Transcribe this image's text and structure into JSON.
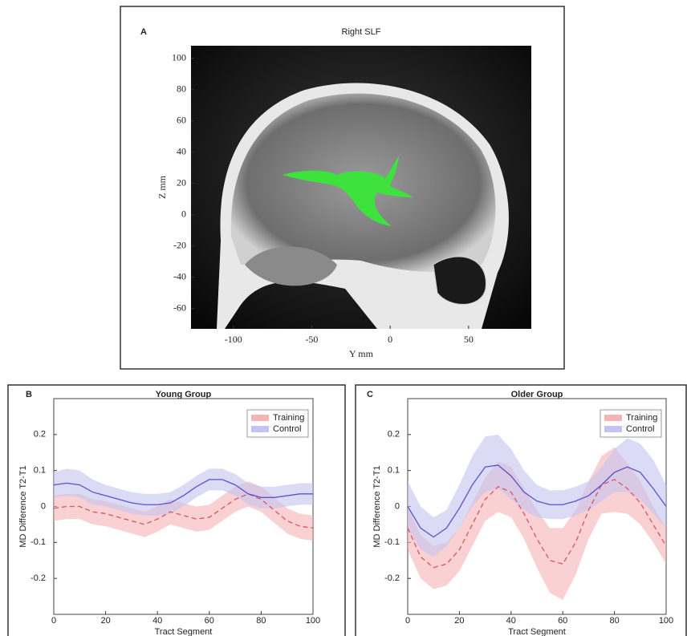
{
  "chart_data": [
    {
      "type": "image",
      "panel_label": "A",
      "title": "Right SLF",
      "xlabel": "Y mm",
      "ylabel": "Z mm",
      "xlim": [
        -127,
        90
      ],
      "ylim": [
        -73,
        108
      ],
      "xticks": [
        -100,
        -50,
        0,
        50
      ],
      "yticks": [
        100,
        80,
        60,
        40,
        20,
        0,
        -20,
        -40,
        -60
      ]
    },
    {
      "type": "band_line",
      "panel_label": "B",
      "title": "Young Group",
      "xlabel": "Tract Segment",
      "ylabel": "MD Difference T2-T1",
      "xlim": [
        0,
        100
      ],
      "ylim": [
        -0.3,
        0.3
      ],
      "xticks": [
        0,
        20,
        40,
        60,
        80,
        100
      ],
      "yticks": [
        0.2,
        0.1,
        0,
        -0.1,
        -0.2
      ],
      "legend": "top-right",
      "x": [
        0,
        5,
        10,
        15,
        20,
        25,
        30,
        35,
        40,
        45,
        50,
        55,
        60,
        65,
        70,
        75,
        80,
        85,
        90,
        95,
        100
      ],
      "series": [
        {
          "name": "Training",
          "color": "#d9545f",
          "band_color": "#f5b3b5",
          "dashed": true,
          "values": [
            -0.005,
            0.0,
            0.0,
            -0.015,
            -0.02,
            -0.03,
            -0.04,
            -0.05,
            -0.035,
            -0.015,
            -0.025,
            -0.035,
            -0.03,
            -0.005,
            0.02,
            0.035,
            0.02,
            -0.01,
            -0.04,
            -0.055,
            -0.06
          ],
          "upper": [
            0.03,
            0.035,
            0.035,
            0.02,
            0.015,
            0.005,
            -0.005,
            -0.015,
            0.0,
            0.02,
            0.01,
            0.0,
            0.005,
            0.03,
            0.055,
            0.07,
            0.055,
            0.025,
            -0.005,
            -0.02,
            -0.025
          ],
          "lower": [
            -0.04,
            -0.035,
            -0.035,
            -0.05,
            -0.055,
            -0.065,
            -0.075,
            -0.085,
            -0.07,
            -0.05,
            -0.06,
            -0.07,
            -0.065,
            -0.04,
            -0.015,
            0.0,
            -0.015,
            -0.045,
            -0.075,
            -0.09,
            -0.095
          ]
        },
        {
          "name": "Control",
          "color": "#5a54c8",
          "band_color": "#c3c3f0",
          "dashed": false,
          "values": [
            0.06,
            0.065,
            0.06,
            0.04,
            0.03,
            0.02,
            0.01,
            0.005,
            0.005,
            0.01,
            0.03,
            0.055,
            0.075,
            0.075,
            0.06,
            0.035,
            0.025,
            0.025,
            0.03,
            0.035,
            0.035
          ],
          "upper": [
            0.095,
            0.105,
            0.1,
            0.075,
            0.06,
            0.05,
            0.04,
            0.035,
            0.035,
            0.04,
            0.06,
            0.085,
            0.105,
            0.105,
            0.09,
            0.065,
            0.055,
            0.055,
            0.06,
            0.065,
            0.065
          ],
          "lower": [
            0.025,
            0.03,
            0.025,
            0.005,
            0.0,
            -0.01,
            -0.02,
            -0.025,
            -0.025,
            -0.02,
            0.0,
            0.025,
            0.045,
            0.045,
            0.03,
            0.005,
            -0.005,
            -0.005,
            0.0,
            0.005,
            0.005
          ]
        }
      ]
    },
    {
      "type": "band_line",
      "panel_label": "C",
      "title": "Older Group",
      "xlabel": "Tract Segment",
      "ylabel": "MD Difference T2-T1",
      "xlim": [
        0,
        100
      ],
      "ylim": [
        -0.3,
        0.3
      ],
      "xticks": [
        0,
        20,
        40,
        60,
        80,
        100
      ],
      "yticks": [
        0.2,
        0.1,
        0,
        -0.1,
        -0.2
      ],
      "legend": "top-right",
      "x": [
        0,
        5,
        10,
        15,
        20,
        25,
        30,
        35,
        40,
        45,
        50,
        55,
        60,
        65,
        70,
        75,
        80,
        85,
        90,
        95,
        100
      ],
      "series": [
        {
          "name": "Training",
          "color": "#d9545f",
          "band_color": "#f5b3b5",
          "dashed": true,
          "values": [
            -0.06,
            -0.14,
            -0.17,
            -0.16,
            -0.12,
            -0.05,
            0.02,
            0.055,
            0.04,
            -0.02,
            -0.09,
            -0.15,
            -0.16,
            -0.1,
            -0.01,
            0.06,
            0.075,
            0.05,
            0.01,
            -0.05,
            -0.11
          ],
          "upper": [
            0.0,
            -0.08,
            -0.11,
            -0.1,
            -0.06,
            0.01,
            0.08,
            0.125,
            0.11,
            0.05,
            -0.01,
            -0.06,
            -0.06,
            -0.01,
            0.07,
            0.14,
            0.165,
            0.12,
            0.07,
            0.0,
            -0.06
          ],
          "lower": [
            -0.12,
            -0.2,
            -0.23,
            -0.22,
            -0.18,
            -0.11,
            -0.04,
            -0.015,
            -0.03,
            -0.09,
            -0.17,
            -0.24,
            -0.26,
            -0.19,
            -0.09,
            -0.02,
            -0.015,
            -0.02,
            -0.05,
            -0.1,
            -0.16
          ]
        },
        {
          "name": "Control",
          "color": "#5a54c8",
          "band_color": "#c3c3f0",
          "dashed": false,
          "values": [
            0.0,
            -0.06,
            -0.085,
            -0.06,
            -0.005,
            0.06,
            0.11,
            0.115,
            0.085,
            0.04,
            0.015,
            0.005,
            0.005,
            0.015,
            0.03,
            0.06,
            0.095,
            0.11,
            0.095,
            0.05,
            0.0
          ],
          "upper": [
            0.07,
            0.0,
            -0.03,
            -0.01,
            0.06,
            0.14,
            0.195,
            0.2,
            0.16,
            0.1,
            0.06,
            0.045,
            0.045,
            0.055,
            0.07,
            0.11,
            0.16,
            0.19,
            0.175,
            0.13,
            0.06
          ],
          "lower": [
            -0.06,
            -0.12,
            -0.14,
            -0.11,
            -0.06,
            0.0,
            0.04,
            0.05,
            0.02,
            -0.01,
            -0.03,
            -0.035,
            -0.035,
            -0.025,
            -0.01,
            0.015,
            0.04,
            0.04,
            0.02,
            -0.02,
            -0.06
          ]
        }
      ]
    }
  ]
}
